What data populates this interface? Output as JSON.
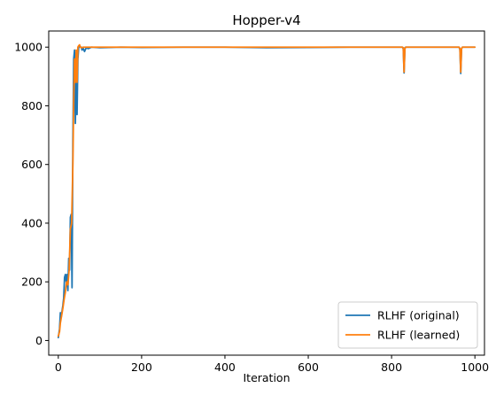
{
  "chart_data": {
    "type": "line",
    "title": "Hopper-v4",
    "xlabel": "Iteration",
    "ylabel": "",
    "xlim": [
      -23,
      1023
    ],
    "ylim": [
      -50,
      1055
    ],
    "xticks": [
      0,
      200,
      400,
      600,
      800,
      1000
    ],
    "yticks": [
      0,
      200,
      400,
      600,
      800,
      1000
    ],
    "legend_position": "lower-right",
    "series": [
      {
        "name": "RLHF (original)",
        "color": "#1f77b4",
        "x": [
          0,
          3,
          5,
          7,
          9,
          11,
          13,
          15,
          17,
          19,
          21,
          23,
          25,
          27,
          29,
          31,
          33,
          35,
          37,
          39,
          41,
          43,
          45,
          47,
          49,
          51,
          53,
          55,
          57,
          60,
          63,
          67,
          72,
          80,
          100,
          150,
          200,
          300,
          400,
          500,
          600,
          700,
          800,
          826,
          828,
          830,
          832,
          834,
          900,
          962,
          964,
          966,
          968,
          970,
          1000
        ],
        "y": [
          10,
          40,
          95,
          80,
          100,
          120,
          145,
          215,
          225,
          200,
          225,
          170,
          280,
          240,
          420,
          430,
          180,
          680,
          960,
          990,
          740,
          980,
          770,
          960,
          1000,
          1005,
          1000,
          1000,
          990,
          995,
          985,
          998,
          995,
          1000,
          998,
          1000,
          999,
          1000,
          1000,
          998,
          999,
          1000,
          1000,
          1000,
          995,
          912,
          998,
          1000,
          1000,
          1000,
          992,
          910,
          995,
          1000,
          1000
        ]
      },
      {
        "name": "RLHF (learned)",
        "color": "#ff7f0e",
        "x": [
          0,
          3,
          5,
          8,
          11,
          14,
          17,
          20,
          23,
          26,
          29,
          32,
          35,
          37,
          39,
          41,
          43,
          45,
          47,
          49,
          51,
          53,
          56,
          60,
          65,
          70,
          80,
          100,
          150,
          200,
          300,
          400,
          500,
          600,
          700,
          800,
          826,
          828,
          830,
          832,
          834,
          900,
          962,
          964,
          966,
          968,
          970,
          1000
        ],
        "y": [
          15,
          30,
          60,
          85,
          110,
          140,
          165,
          200,
          190,
          240,
          380,
          400,
          600,
          820,
          960,
          880,
          990,
          880,
          1000,
          1005,
          1008,
          1000,
          998,
          1000,
          1000,
          1000,
          1000,
          1000,
          1000,
          1000,
          1000,
          1000,
          1000,
          1000,
          1000,
          1000,
          1000,
          998,
          915,
          995,
          1000,
          1000,
          1000,
          995,
          915,
          995,
          1000,
          1000
        ]
      }
    ]
  }
}
